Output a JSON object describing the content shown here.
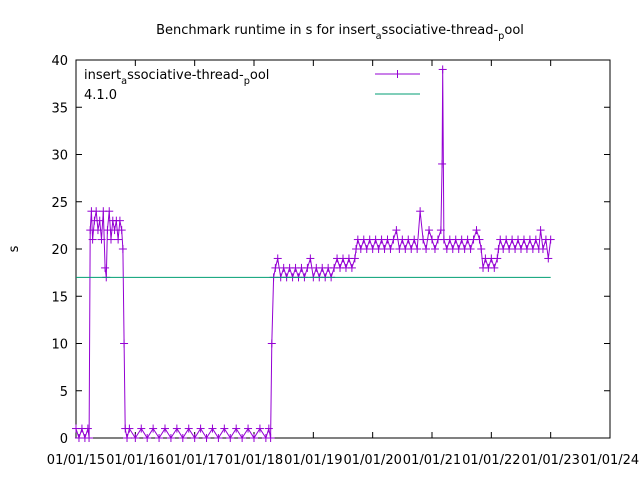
{
  "chart_data": {
    "type": "line",
    "title": {
      "pre": "Benchmark runtime in s for insert",
      "sub1": "a",
      "mid": "ssociative-thread-",
      "sub2": "p",
      "post": "ool"
    },
    "ylabel": "s",
    "xlabel": "",
    "ylim": [
      0,
      40
    ],
    "yticks": [
      0,
      5,
      10,
      15,
      20,
      25,
      30,
      35,
      40
    ],
    "xlim": [
      2015,
      2024
    ],
    "xticks": [
      {
        "x": 2015,
        "label": "01/01/15"
      },
      {
        "x": 2016,
        "label": "01/01/16"
      },
      {
        "x": 2017,
        "label": "01/01/17"
      },
      {
        "x": 2018,
        "label": "01/01/18"
      },
      {
        "x": 2019,
        "label": "01/01/19"
      },
      {
        "x": 2020,
        "label": "01/01/20"
      },
      {
        "x": 2021,
        "label": "01/01/21"
      },
      {
        "x": 2022,
        "label": "01/01/22"
      },
      {
        "x": 2023,
        "label": "01/01/23"
      },
      {
        "x": 2024,
        "label": "01/01/24"
      }
    ],
    "grid": false,
    "legend": "top-right",
    "series": [
      {
        "name": "insert_associative-thread-_pool",
        "legend_text": {
          "pre": "insert",
          "sub1": "a",
          "mid": "ssociative-thread-",
          "sub2": "p",
          "post": "ool"
        },
        "color": "#9400d3",
        "marker": "plus",
        "points": [
          [
            2015.0,
            1
          ],
          [
            2015.05,
            0
          ],
          [
            2015.1,
            1
          ],
          [
            2015.15,
            0
          ],
          [
            2015.2,
            1
          ],
          [
            2015.22,
            0
          ],
          [
            2015.24,
            22
          ],
          [
            2015.26,
            24
          ],
          [
            2015.28,
            21
          ],
          [
            2015.31,
            23
          ],
          [
            2015.34,
            24
          ],
          [
            2015.37,
            22
          ],
          [
            2015.4,
            23
          ],
          [
            2015.43,
            21
          ],
          [
            2015.46,
            24
          ],
          [
            2015.49,
            18
          ],
          [
            2015.51,
            17
          ],
          [
            2015.53,
            22
          ],
          [
            2015.56,
            24
          ],
          [
            2015.59,
            21
          ],
          [
            2015.62,
            23
          ],
          [
            2015.65,
            22
          ],
          [
            2015.68,
            23
          ],
          [
            2015.71,
            21
          ],
          [
            2015.74,
            23
          ],
          [
            2015.77,
            22
          ],
          [
            2015.79,
            20
          ],
          [
            2015.81,
            10
          ],
          [
            2015.83,
            1
          ],
          [
            2015.86,
            0
          ],
          [
            2015.9,
            1
          ],
          [
            2016.0,
            0
          ],
          [
            2016.1,
            1
          ],
          [
            2016.2,
            0
          ],
          [
            2016.3,
            1
          ],
          [
            2016.4,
            0
          ],
          [
            2016.5,
            1
          ],
          [
            2016.6,
            0
          ],
          [
            2016.7,
            1
          ],
          [
            2016.8,
            0
          ],
          [
            2016.9,
            1
          ],
          [
            2017.0,
            0
          ],
          [
            2017.1,
            1
          ],
          [
            2017.2,
            0
          ],
          [
            2017.3,
            1
          ],
          [
            2017.4,
            0
          ],
          [
            2017.5,
            1
          ],
          [
            2017.6,
            0
          ],
          [
            2017.7,
            1
          ],
          [
            2017.8,
            0
          ],
          [
            2017.9,
            1
          ],
          [
            2018.0,
            0
          ],
          [
            2018.1,
            1
          ],
          [
            2018.2,
            0
          ],
          [
            2018.25,
            1
          ],
          [
            2018.28,
            0
          ],
          [
            2018.3,
            10
          ],
          [
            2018.33,
            17
          ],
          [
            2018.36,
            18
          ],
          [
            2018.4,
            19
          ],
          [
            2018.45,
            17
          ],
          [
            2018.5,
            18
          ],
          [
            2018.55,
            17
          ],
          [
            2018.6,
            18
          ],
          [
            2018.65,
            17
          ],
          [
            2018.7,
            18
          ],
          [
            2018.75,
            17
          ],
          [
            2018.8,
            18
          ],
          [
            2018.85,
            17
          ],
          [
            2018.9,
            18
          ],
          [
            2018.95,
            19
          ],
          [
            2019.0,
            17
          ],
          [
            2019.05,
            18
          ],
          [
            2019.1,
            17
          ],
          [
            2019.15,
            18
          ],
          [
            2019.2,
            17
          ],
          [
            2019.25,
            18
          ],
          [
            2019.3,
            17
          ],
          [
            2019.35,
            18
          ],
          [
            2019.4,
            19
          ],
          [
            2019.45,
            18
          ],
          [
            2019.5,
            19
          ],
          [
            2019.55,
            18
          ],
          [
            2019.6,
            19
          ],
          [
            2019.65,
            18
          ],
          [
            2019.7,
            19
          ],
          [
            2019.72,
            20
          ],
          [
            2019.75,
            21
          ],
          [
            2019.8,
            20
          ],
          [
            2019.85,
            21
          ],
          [
            2019.9,
            20
          ],
          [
            2019.95,
            21
          ],
          [
            2020.0,
            20
          ],
          [
            2020.05,
            21
          ],
          [
            2020.1,
            20
          ],
          [
            2020.15,
            21
          ],
          [
            2020.2,
            20
          ],
          [
            2020.25,
            21
          ],
          [
            2020.3,
            20
          ],
          [
            2020.35,
            21
          ],
          [
            2020.4,
            22
          ],
          [
            2020.45,
            20
          ],
          [
            2020.5,
            21
          ],
          [
            2020.55,
            20
          ],
          [
            2020.6,
            21
          ],
          [
            2020.65,
            20
          ],
          [
            2020.7,
            21
          ],
          [
            2020.75,
            20
          ],
          [
            2020.8,
            24
          ],
          [
            2020.85,
            21
          ],
          [
            2020.9,
            20
          ],
          [
            2020.95,
            22
          ],
          [
            2021.0,
            21
          ],
          [
            2021.05,
            20
          ],
          [
            2021.1,
            21
          ],
          [
            2021.15,
            22
          ],
          [
            2021.17,
            29
          ],
          [
            2021.18,
            39
          ],
          [
            2021.2,
            21
          ],
          [
            2021.25,
            20
          ],
          [
            2021.3,
            21
          ],
          [
            2021.35,
            20
          ],
          [
            2021.4,
            21
          ],
          [
            2021.45,
            20
          ],
          [
            2021.5,
            21
          ],
          [
            2021.55,
            20
          ],
          [
            2021.6,
            21
          ],
          [
            2021.65,
            20
          ],
          [
            2021.7,
            21
          ],
          [
            2021.75,
            22
          ],
          [
            2021.8,
            21
          ],
          [
            2021.83,
            20
          ],
          [
            2021.86,
            18
          ],
          [
            2021.9,
            19
          ],
          [
            2021.95,
            18
          ],
          [
            2022.0,
            19
          ],
          [
            2022.05,
            18
          ],
          [
            2022.1,
            19
          ],
          [
            2022.12,
            20
          ],
          [
            2022.15,
            21
          ],
          [
            2022.2,
            20
          ],
          [
            2022.25,
            21
          ],
          [
            2022.3,
            20
          ],
          [
            2022.35,
            21
          ],
          [
            2022.4,
            20
          ],
          [
            2022.45,
            21
          ],
          [
            2022.5,
            20
          ],
          [
            2022.55,
            21
          ],
          [
            2022.6,
            20
          ],
          [
            2022.65,
            21
          ],
          [
            2022.7,
            20
          ],
          [
            2022.75,
            21
          ],
          [
            2022.8,
            20
          ],
          [
            2022.83,
            22
          ],
          [
            2022.87,
            20
          ],
          [
            2022.92,
            21
          ],
          [
            2022.96,
            19
          ],
          [
            2023.0,
            21
          ]
        ]
      },
      {
        "name": "4.1.0",
        "legend_text": {
          "pre": "4.1.0"
        },
        "color": "#009e73",
        "marker": "none",
        "points": [
          [
            2015.0,
            17
          ],
          [
            2023.0,
            17
          ]
        ]
      }
    ]
  }
}
